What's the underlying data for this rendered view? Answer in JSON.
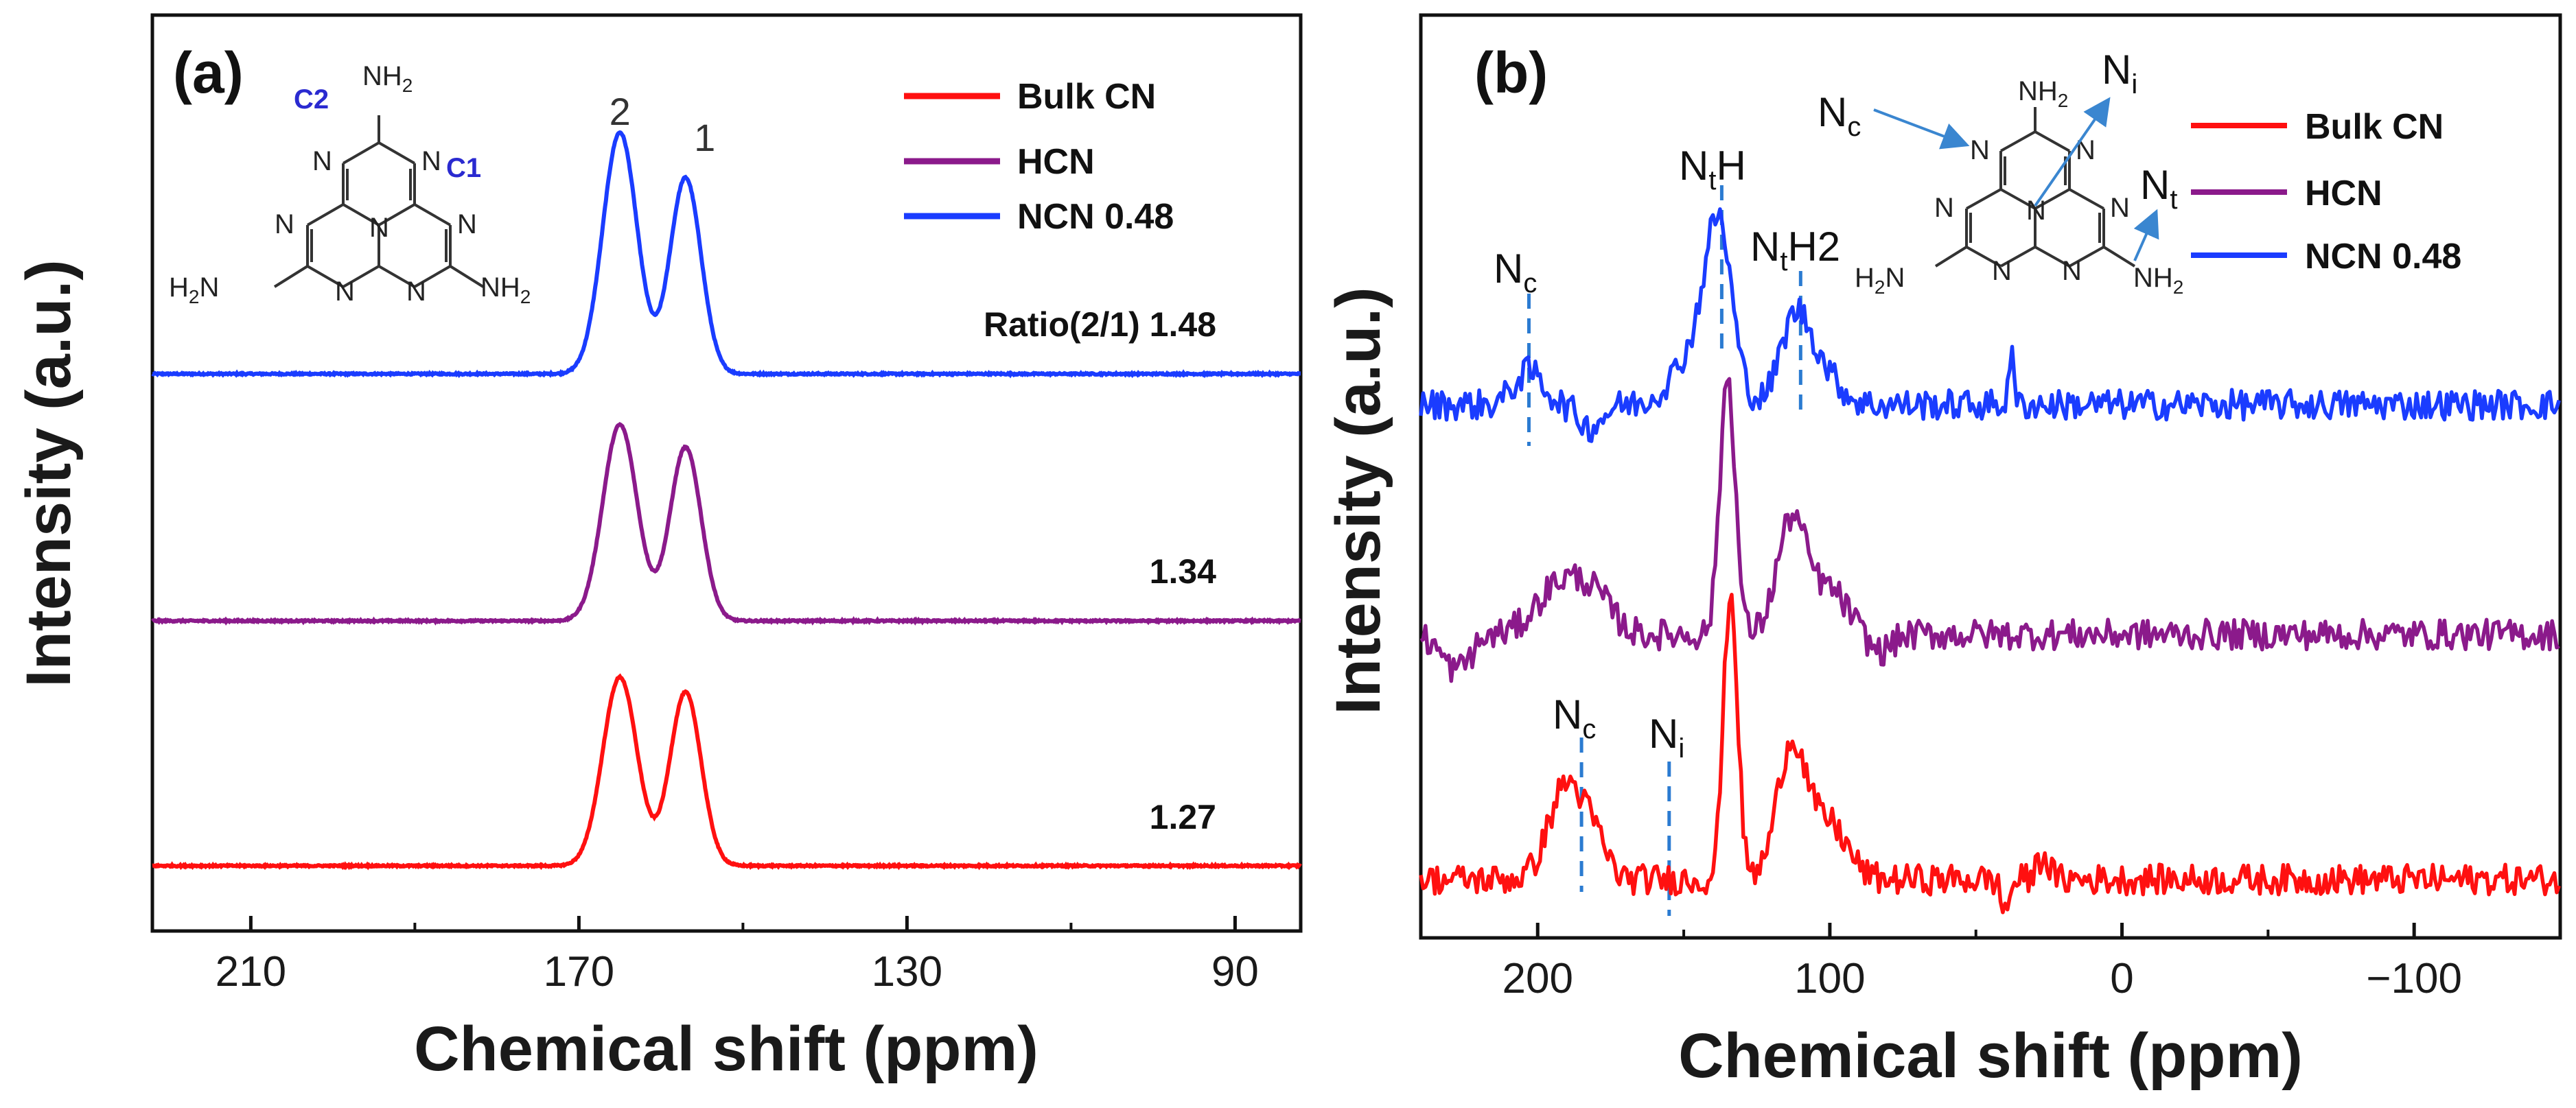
{
  "colors": {
    "bulk_cn": "#ff1010",
    "hcn": "#8b1a8b",
    "ncn": "#1a3cff",
    "guide": "#2b7bd1",
    "arrow": "#3a86d0"
  },
  "chart_data": [
    {
      "id": "a",
      "type": "line",
      "panel_label": "(a)",
      "xlabel": "Chemical shift (ppm)",
      "ylabel": "Intensity (a.u.)",
      "xlim": [
        222,
        82
      ],
      "x_reversed": true,
      "xticks": [
        210,
        170,
        130,
        90
      ],
      "xtick_labels": [
        "210",
        "170",
        "130",
        "90"
      ],
      "legend": {
        "placement": "top-right",
        "entries": [
          {
            "label": "Bulk CN",
            "color": "#ff1010"
          },
          {
            "label": "HCN",
            "color": "#8b1a8b"
          },
          {
            "label": "NCN 0.48",
            "color": "#1a3cff"
          }
        ]
      },
      "peaks": [
        {
          "label": "2",
          "x": 165
        },
        {
          "label": "1",
          "x": 157
        }
      ],
      "series": [
        {
          "name": "NCN 0.48",
          "color": "#1a3cff",
          "baseline": 0.62,
          "peak2_height": 0.32,
          "peak1_height": 0.26,
          "ratio_label": "Ratio(2/1) 1.48"
        },
        {
          "name": "HCN",
          "color": "#8b1a8b",
          "baseline": 0.31,
          "peak2_height": 0.26,
          "peak1_height": 0.23,
          "ratio_label": "1.34"
        },
        {
          "name": "Bulk CN",
          "color": "#ff1010",
          "baseline": 0.0,
          "peak2_height": 0.25,
          "peak1_height": 0.23,
          "ratio_label": "1.27"
        }
      ],
      "structure_labels": {
        "c2": "C2",
        "c1": "C1",
        "nh2": "NH",
        "nh2_sub": "2",
        "h2n": "H",
        "h2n_sub": "2",
        "h2n_tail": "N",
        "n": "N"
      }
    },
    {
      "id": "b",
      "type": "line",
      "panel_label": "(b)",
      "xlabel": "Chemical shift (ppm)",
      "ylabel": "Intensity (a.u.)",
      "xlim": [
        240,
        -150
      ],
      "x_reversed": true,
      "xticks": [
        200,
        100,
        0,
        -100
      ],
      "xtick_labels": [
        "200",
        "100",
        "0",
        "−100"
      ],
      "legend": {
        "placement": "top-right",
        "entries": [
          {
            "label": "Bulk CN",
            "color": "#ff1010"
          },
          {
            "label": "HCN",
            "color": "#8b1a8b"
          },
          {
            "label": "NCN 0.48",
            "color": "#1a3cff"
          }
        ]
      },
      "guide_lines": [
        {
          "x": 203,
          "label": "N",
          "sub": "c",
          "series": "NCN 0.48"
        },
        {
          "x": 137,
          "label": "N",
          "sub": "t",
          "tail": "H",
          "series": "NCN 0.48"
        },
        {
          "x": 110,
          "label": "N",
          "sub": "t",
          "tail": "H2",
          "series": "NCN 0.48"
        },
        {
          "x": 185,
          "label": "N",
          "sub": "c",
          "series": "Bulk CN"
        },
        {
          "x": 155,
          "label": "N",
          "sub": "i",
          "series": "Bulk CN"
        }
      ],
      "peaks_ppm": [
        203,
        190,
        137,
        134,
        113,
        110,
        38
      ],
      "series": [
        {
          "name": "NCN 0.48",
          "color": "#1a3cff",
          "baseline": 0.64,
          "amp": 1.0
        },
        {
          "name": "HCN",
          "color": "#8b1a8b",
          "baseline": 0.33,
          "amp": 1.05
        },
        {
          "name": "Bulk CN",
          "color": "#ff1010",
          "baseline": 0.0,
          "amp": 1.1
        }
      ],
      "structure_labels": {
        "nc": "N",
        "nc_sub": "c",
        "ni": "N",
        "ni_sub": "i",
        "nt": "N",
        "nt_sub": "t",
        "nh2": "NH",
        "nh2_sub": "2",
        "h2n": "H",
        "h2n_sub": "2",
        "h2n_tail": "N",
        "n": "N"
      }
    }
  ]
}
